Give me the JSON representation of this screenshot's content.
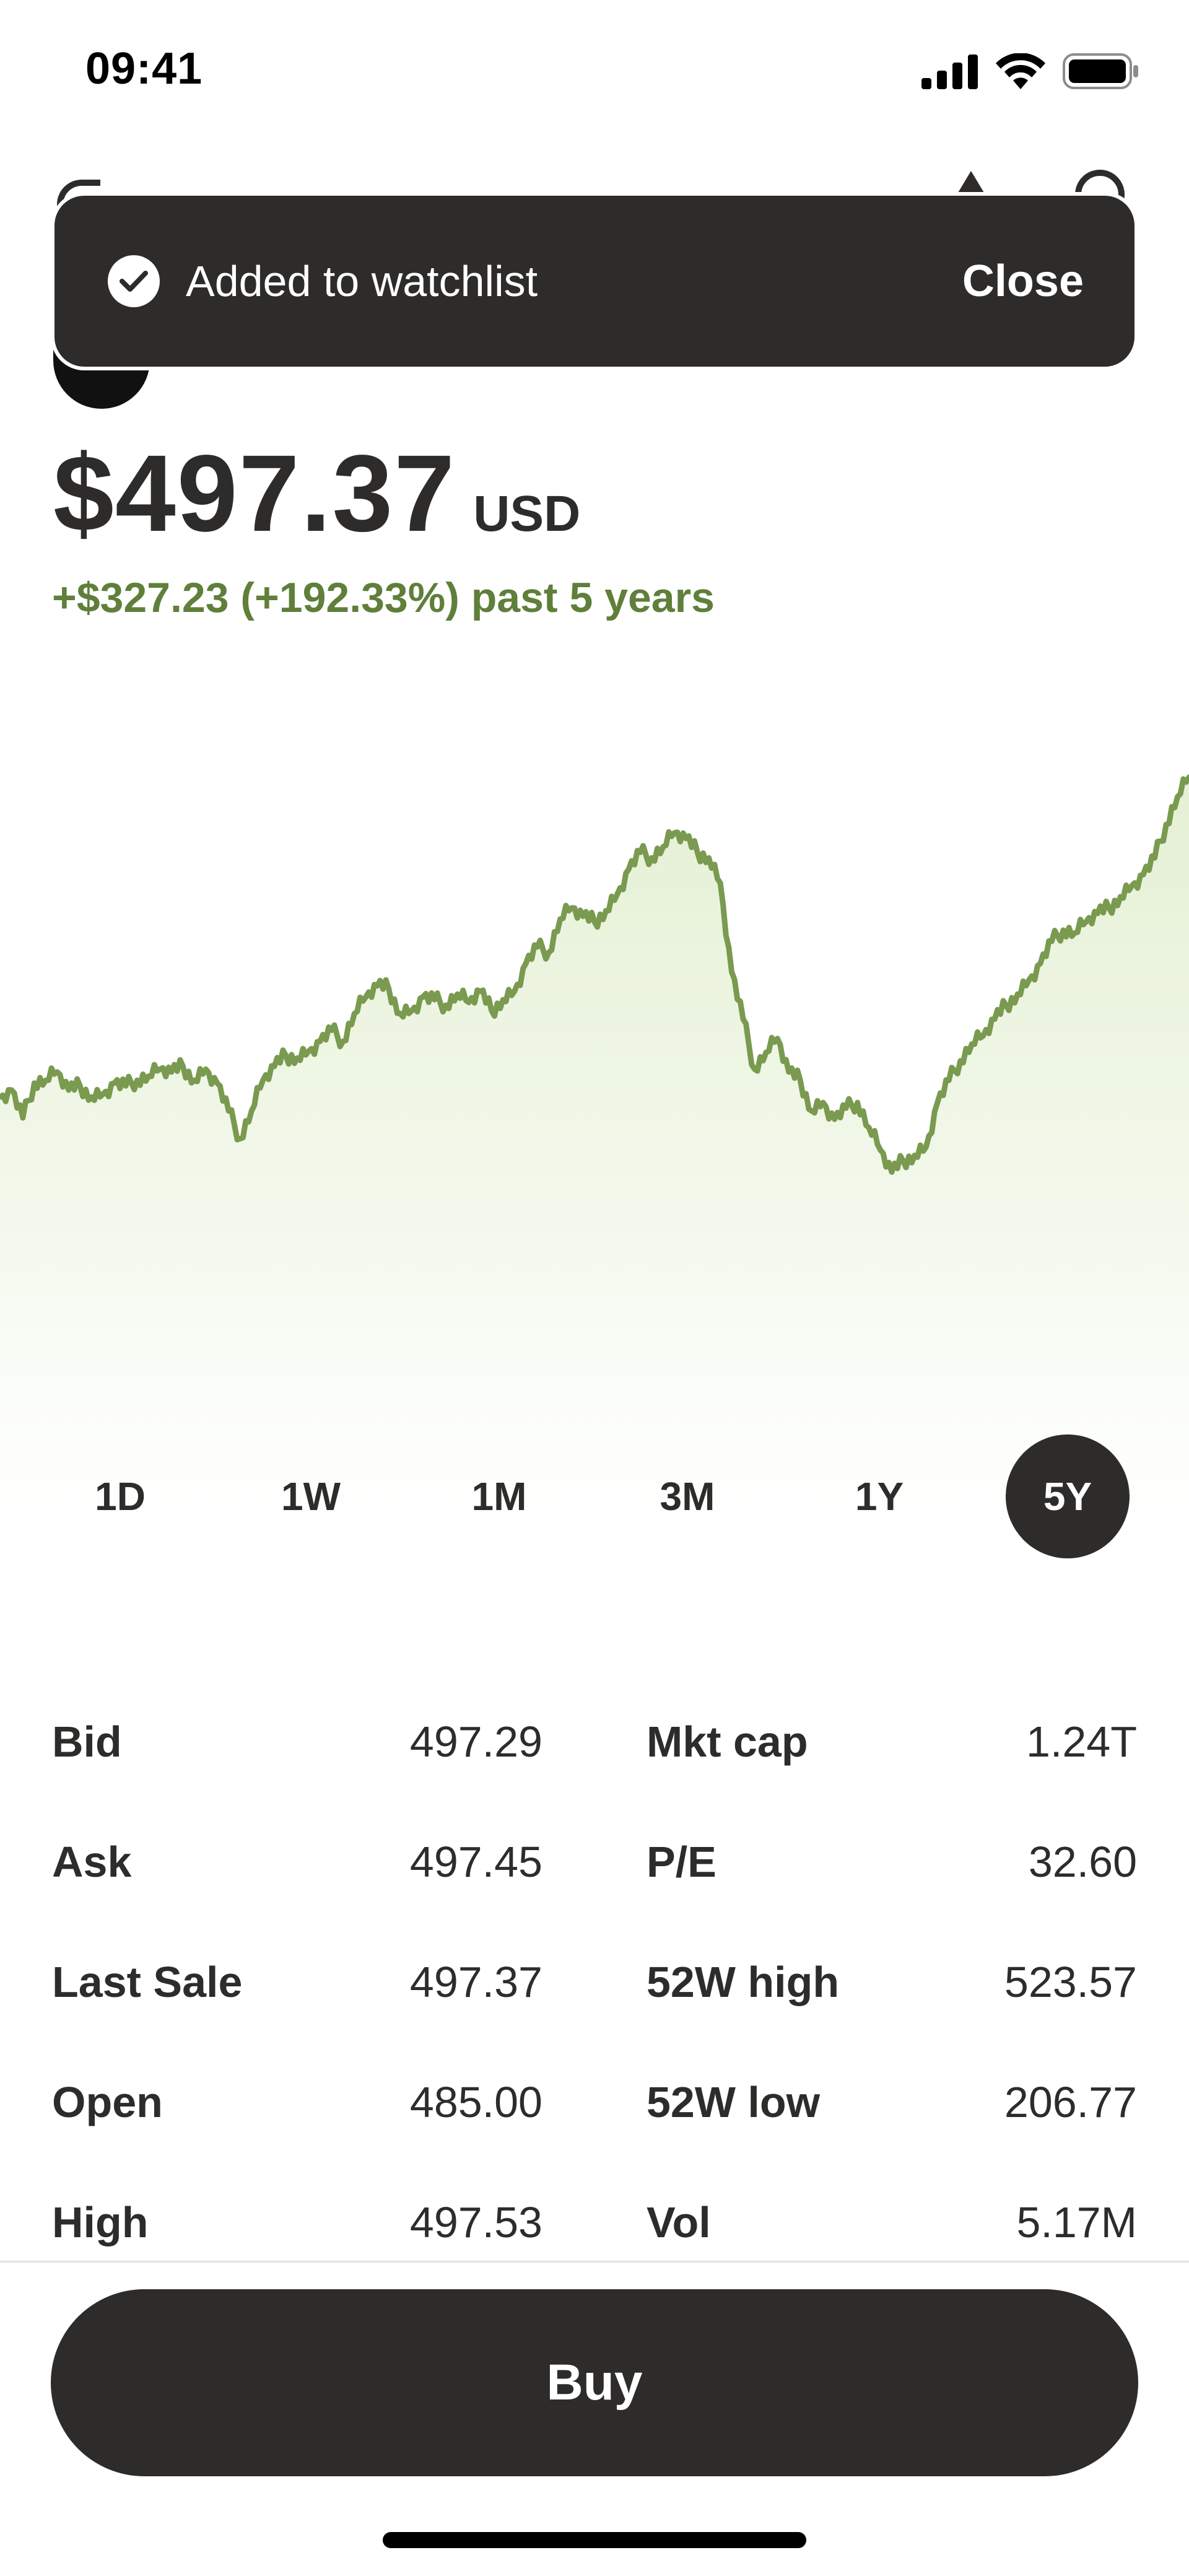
{
  "status_bar": {
    "time": "09:41"
  },
  "toast": {
    "message": "Added to watchlist",
    "close_label": "Close"
  },
  "quote": {
    "price": "$497.37",
    "currency": "USD",
    "change_text": "+$327.23 (+192.33%) past 5 years"
  },
  "colors": {
    "positive": "#5f7f3a",
    "line": "#7a9a50",
    "fill": "#e8f2d8",
    "dark": "#2e2c2a"
  },
  "chart_data": {
    "type": "area",
    "ylim": [
      100,
      550
    ],
    "grid": false,
    "legend": "none",
    "values": [
      300,
      305,
      285,
      310,
      312,
      318,
      305,
      308,
      300,
      302,
      310,
      308,
      312,
      315,
      320,
      318,
      322,
      312,
      320,
      310,
      290,
      270,
      290,
      312,
      322,
      330,
      328,
      333,
      340,
      348,
      340,
      360,
      372,
      380,
      378,
      360,
      362,
      372,
      370,
      366,
      374,
      368,
      376,
      362,
      370,
      376,
      396,
      408,
      404,
      428,
      436,
      430,
      426,
      434,
      446,
      464,
      476,
      472,
      480,
      490,
      486,
      476,
      472,
      454,
      390,
      356,
      320,
      332,
      342,
      318,
      312,
      290,
      296,
      284,
      292,
      296,
      278,
      262,
      246,
      254,
      258,
      264,
      296,
      312,
      326,
      338,
      344,
      356,
      366,
      374,
      384,
      396,
      412,
      420,
      418,
      426,
      432,
      436,
      444,
      452,
      460,
      472,
      496,
      516,
      530
    ]
  },
  "range_tabs": [
    {
      "label": "1D",
      "active": false
    },
    {
      "label": "1W",
      "active": false
    },
    {
      "label": "1M",
      "active": false
    },
    {
      "label": "3M",
      "active": false
    },
    {
      "label": "1Y",
      "active": false
    },
    {
      "label": "5Y",
      "active": true
    }
  ],
  "stats": {
    "left": [
      {
        "label": "Bid",
        "value": "497.29"
      },
      {
        "label": "Ask",
        "value": "497.45"
      },
      {
        "label": "Last Sale",
        "value": "497.37"
      },
      {
        "label": "Open",
        "value": "485.00"
      },
      {
        "label": "High",
        "value": "497.53"
      }
    ],
    "right": [
      {
        "label": "Mkt cap",
        "value": "1.24T"
      },
      {
        "label": "P/E",
        "value": "32.60"
      },
      {
        "label": "52W high",
        "value": "523.57"
      },
      {
        "label": "52W low",
        "value": "206.77"
      },
      {
        "label": "Vol",
        "value": "5.17M"
      }
    ]
  },
  "actions": {
    "buy_label": "Buy"
  }
}
